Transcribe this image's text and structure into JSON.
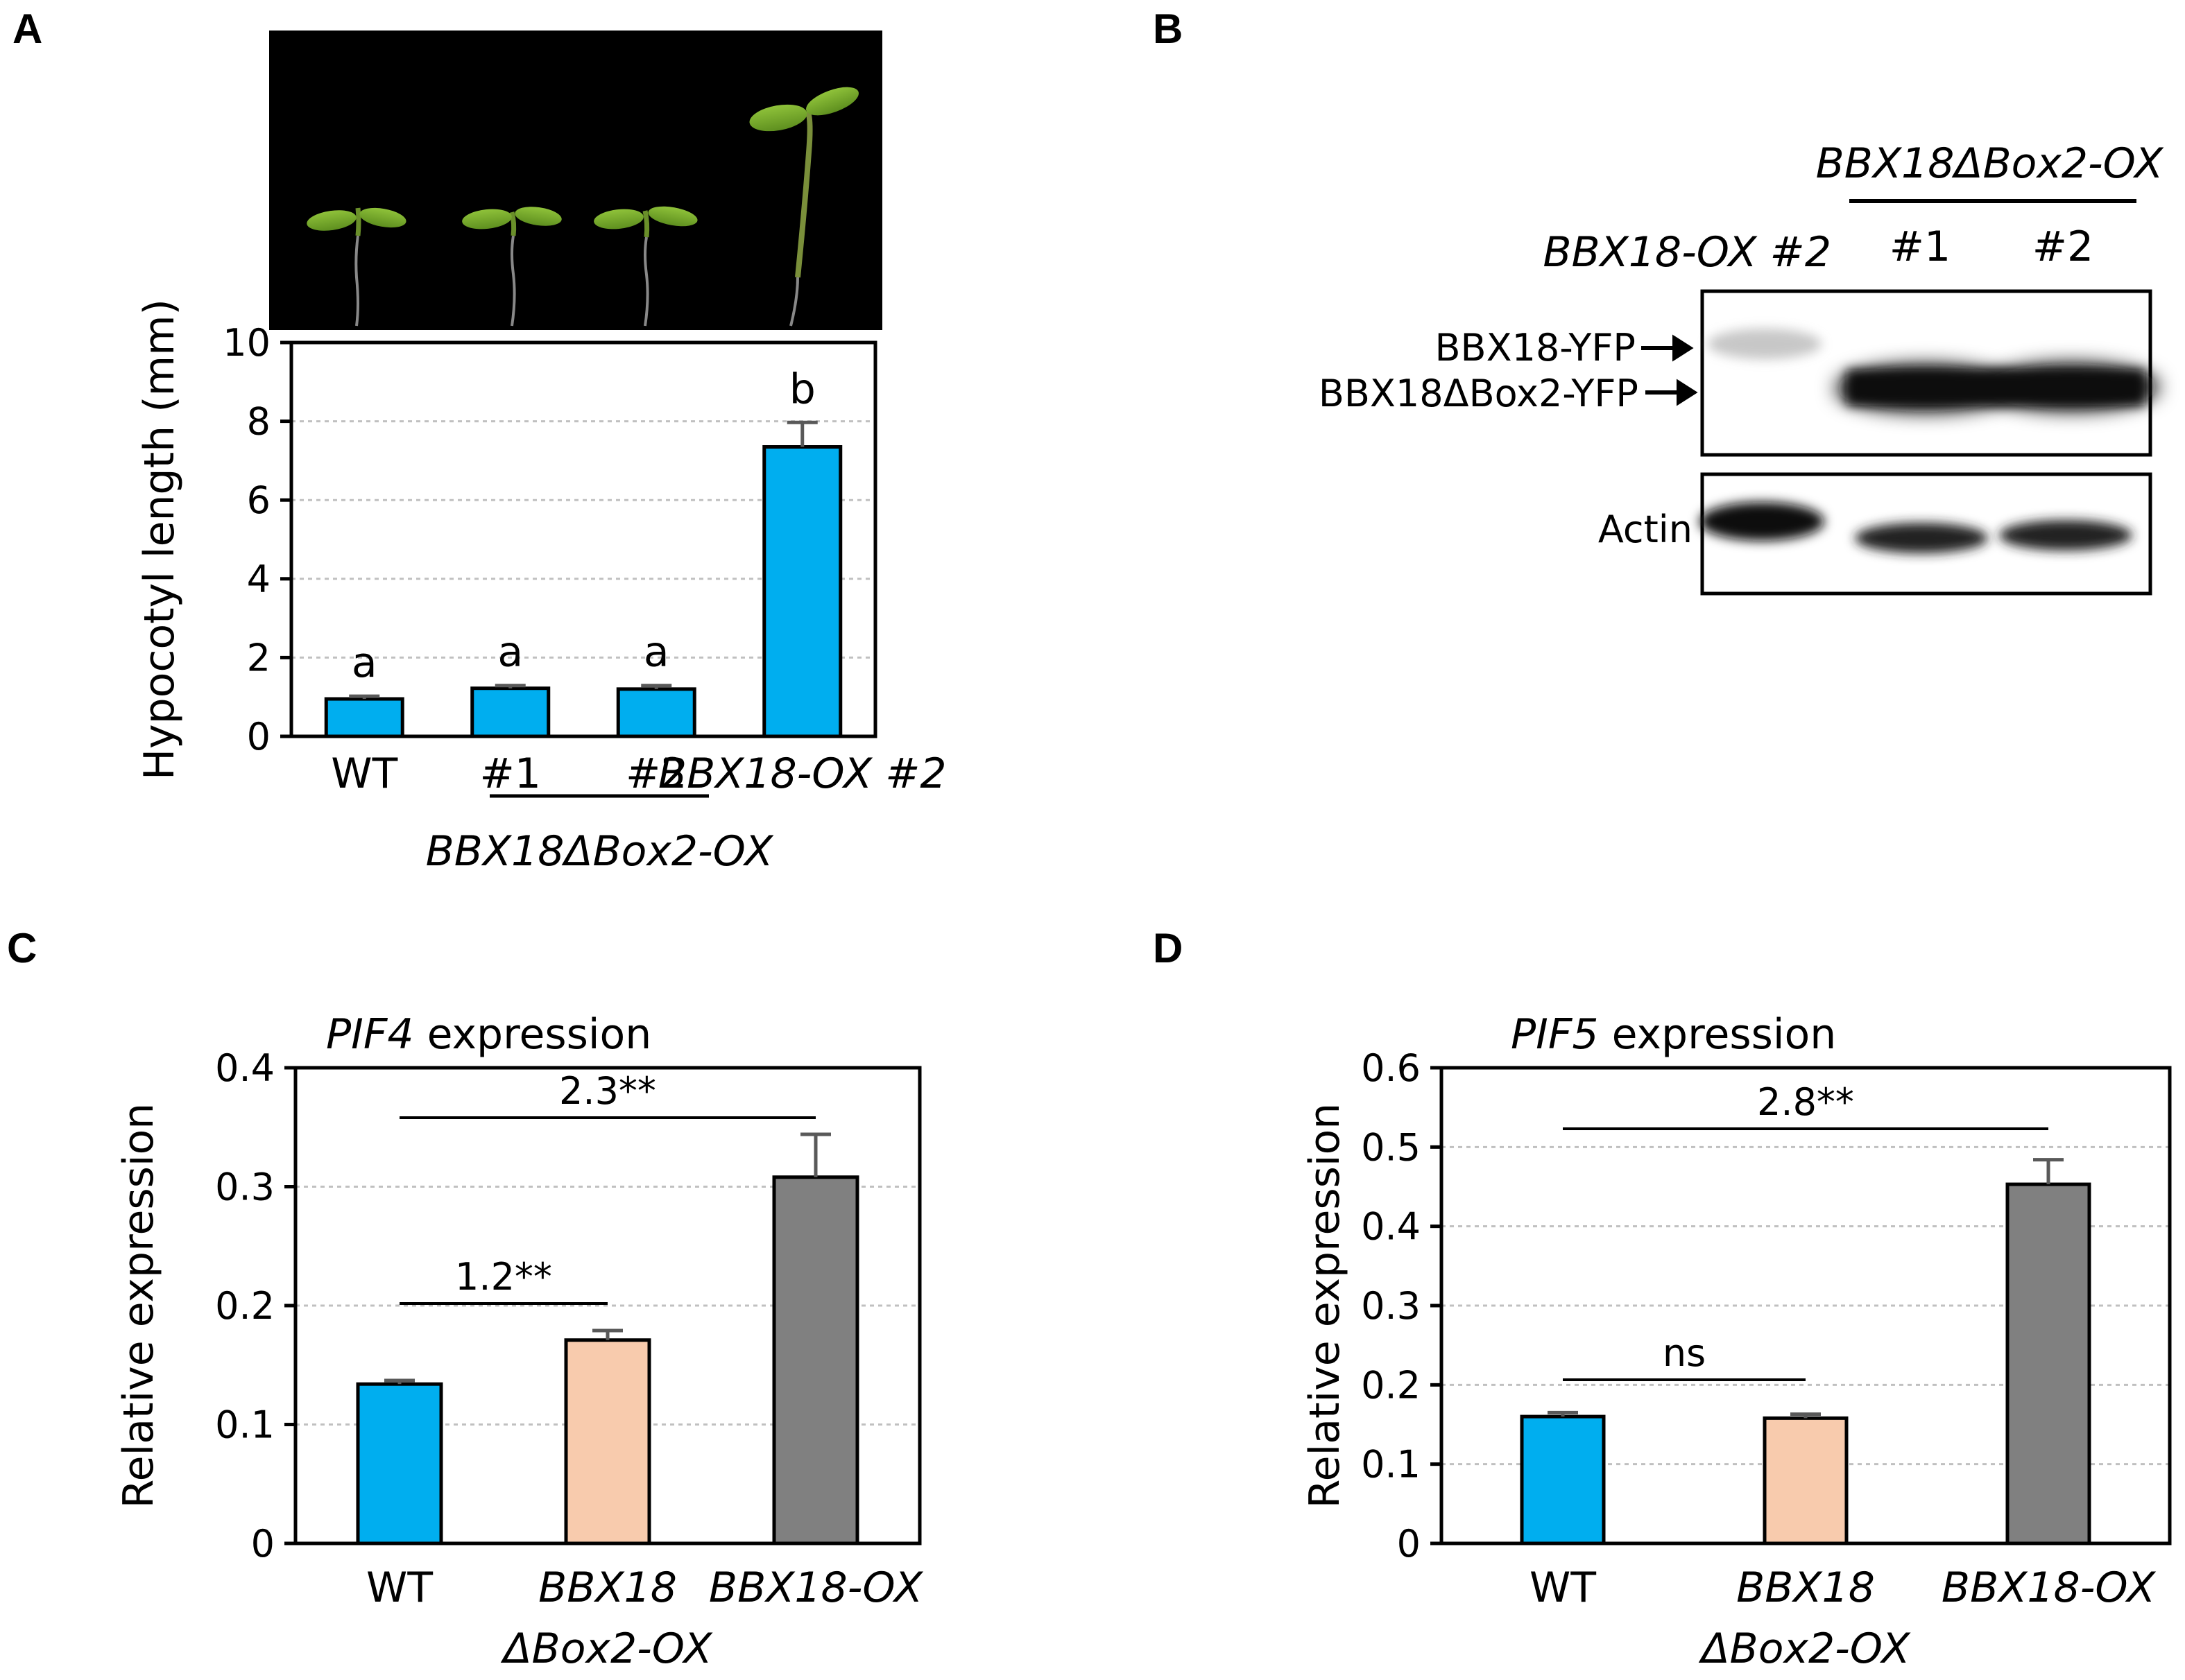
{
  "panel_letters": {
    "a": "A",
    "b": "B",
    "c": "C",
    "d": "D"
  },
  "panel_a": {
    "group_label": "BBX18ΔBox2-OX"
  },
  "panel_b": {
    "header_group": "BBX18ΔBox2-OX",
    "lane1": "BBX18-OX #2",
    "lane2": "#1",
    "lane3": "#2",
    "band_label_1": "BBX18-YFP",
    "band_label_2": "BBX18ΔBox2-YFP",
    "loading_control": "Actin"
  },
  "colors": {
    "blue": "#00aeef",
    "peach": "#f8cbad",
    "gray": "#808080",
    "errorbar": "#595959",
    "grid": "#c0c0c0"
  },
  "chart_data": [
    {
      "type": "bar",
      "id": "A",
      "categories": [
        "WT",
        "#1",
        "#2",
        "BBX18-OX #2"
      ],
      "values": [
        0.95,
        1.22,
        1.2,
        7.35
      ],
      "errors": [
        0.07,
        0.07,
        0.09,
        0.62
      ],
      "letters": [
        "a",
        "a",
        "a",
        "b"
      ],
      "colors": [
        "#00aeef",
        "#00aeef",
        "#00aeef",
        "#00aeef"
      ],
      "ylabel": "Hypocotyl length (mm)",
      "ylim": [
        0,
        10
      ],
      "yticks": [
        0,
        2,
        4,
        6,
        8,
        10
      ],
      "grid": true
    },
    {
      "type": "bar",
      "id": "C",
      "title_gene": "PIF4",
      "title_rest": " expression",
      "categories": [
        "WT",
        "BBX18",
        "BBX18-OX"
      ],
      "category_line2": [
        "",
        "ΔBox2-OX",
        ""
      ],
      "values": [
        0.134,
        0.171,
        0.308
      ],
      "errors": [
        0.003,
        0.008,
        0.036
      ],
      "colors": [
        "#00aeef",
        "#f8cbad",
        "#808080"
      ],
      "ylabel": "Relative expression",
      "ylim": [
        0,
        0.4
      ],
      "yticks": [
        "0",
        "0.1",
        "0.2",
        "0.3",
        "0.4"
      ],
      "brackets": [
        {
          "from": 0,
          "to": 1,
          "label": "1.2**"
        },
        {
          "from": 0,
          "to": 2,
          "label": "2.3**"
        }
      ],
      "grid": true
    },
    {
      "type": "bar",
      "id": "D",
      "title_gene": "PIF5",
      "title_rest": " expression",
      "categories": [
        "WT",
        "BBX18",
        "BBX18-OX"
      ],
      "category_line2": [
        "",
        "ΔBox2-OX",
        ""
      ],
      "values": [
        0.16,
        0.158,
        0.453
      ],
      "errors": [
        0.005,
        0.005,
        0.031
      ],
      "colors": [
        "#00aeef",
        "#f8cbad",
        "#808080"
      ],
      "ylabel": "Relative expression",
      "ylim": [
        0,
        0.6
      ],
      "yticks": [
        "0",
        "0.1",
        "0.2",
        "0.3",
        "0.4",
        "0.5",
        "0.6"
      ],
      "brackets": [
        {
          "from": 0,
          "to": 1,
          "label": "ns"
        },
        {
          "from": 0,
          "to": 2,
          "label": "2.8**"
        }
      ],
      "grid": true
    }
  ]
}
